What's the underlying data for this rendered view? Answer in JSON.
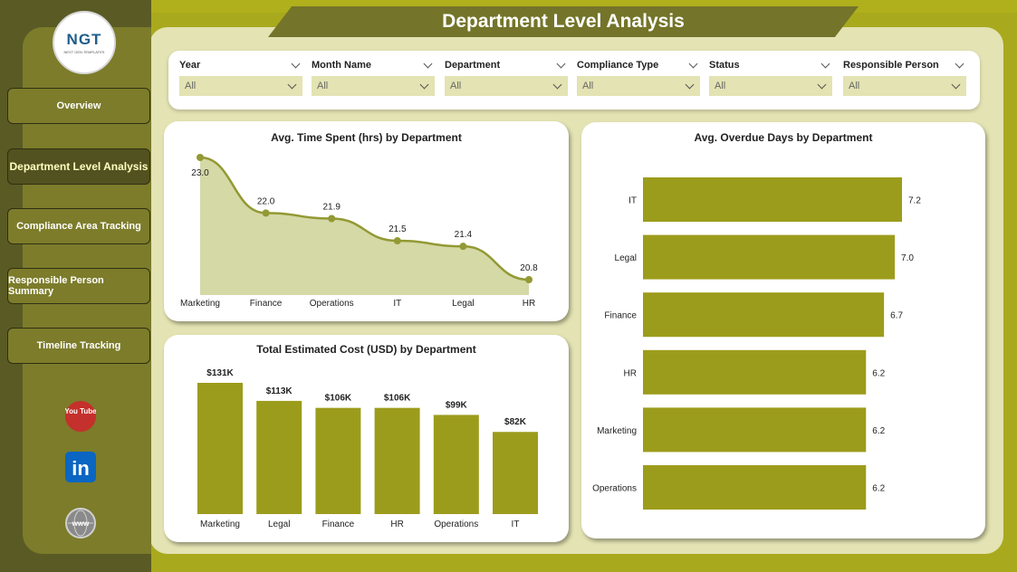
{
  "title": "Department Level Analysis",
  "logo": {
    "mark": "NGT",
    "tagline": "NEXT GEN TEMPLATES"
  },
  "nav": [
    {
      "label": "Overview",
      "active": false
    },
    {
      "label": "Department Level Analysis",
      "active": true
    },
    {
      "label": "Compliance Area Tracking",
      "active": false
    },
    {
      "label": "Responsible Person Summary",
      "active": false
    },
    {
      "label": "Timeline Tracking",
      "active": false
    }
  ],
  "social": {
    "youtube_text": "You Tube",
    "linkedin_text": "in",
    "web_text": "www"
  },
  "filters": [
    {
      "label": "Year",
      "value": "All"
    },
    {
      "label": "Month Name",
      "value": "All"
    },
    {
      "label": "Department",
      "value": "All"
    },
    {
      "label": "Compliance Type",
      "value": "All"
    },
    {
      "label": "Status",
      "value": "All"
    },
    {
      "label": "Responsible Person",
      "value": "All"
    }
  ],
  "colors": {
    "accent": "#9c9c1c",
    "area_fill": "#d4d9a6",
    "line": "#939933",
    "panel": "#e3e3b3"
  },
  "chart_data": [
    {
      "type": "area",
      "title": "Avg. Time Spent (hrs) by Department",
      "categories": [
        "Marketing",
        "Finance",
        "Operations",
        "IT",
        "Legal",
        "HR"
      ],
      "values": [
        23.0,
        22.0,
        21.9,
        21.5,
        21.4,
        20.8
      ],
      "data_labels": [
        "23.0",
        "22.0",
        "21.9",
        "21.5",
        "21.4",
        "20.8"
      ]
    },
    {
      "type": "bar",
      "title": "Total Estimated Cost (USD) by Department",
      "categories": [
        "Marketing",
        "Legal",
        "Finance",
        "HR",
        "Operations",
        "IT"
      ],
      "values": [
        131000,
        113000,
        106000,
        106000,
        99000,
        82000
      ],
      "data_labels": [
        "$131K",
        "$113K",
        "$106K",
        "$106K",
        "$99K",
        "$82K"
      ]
    },
    {
      "type": "bar",
      "orientation": "horizontal",
      "title": "Avg. Overdue Days by Department",
      "categories": [
        "IT",
        "Legal",
        "Finance",
        "HR",
        "Marketing",
        "Operations"
      ],
      "values": [
        7.2,
        7.0,
        6.7,
        6.2,
        6.2,
        6.2
      ],
      "data_labels": [
        "7.2",
        "7.0",
        "6.7",
        "6.2",
        "6.2",
        "6.2"
      ]
    }
  ]
}
